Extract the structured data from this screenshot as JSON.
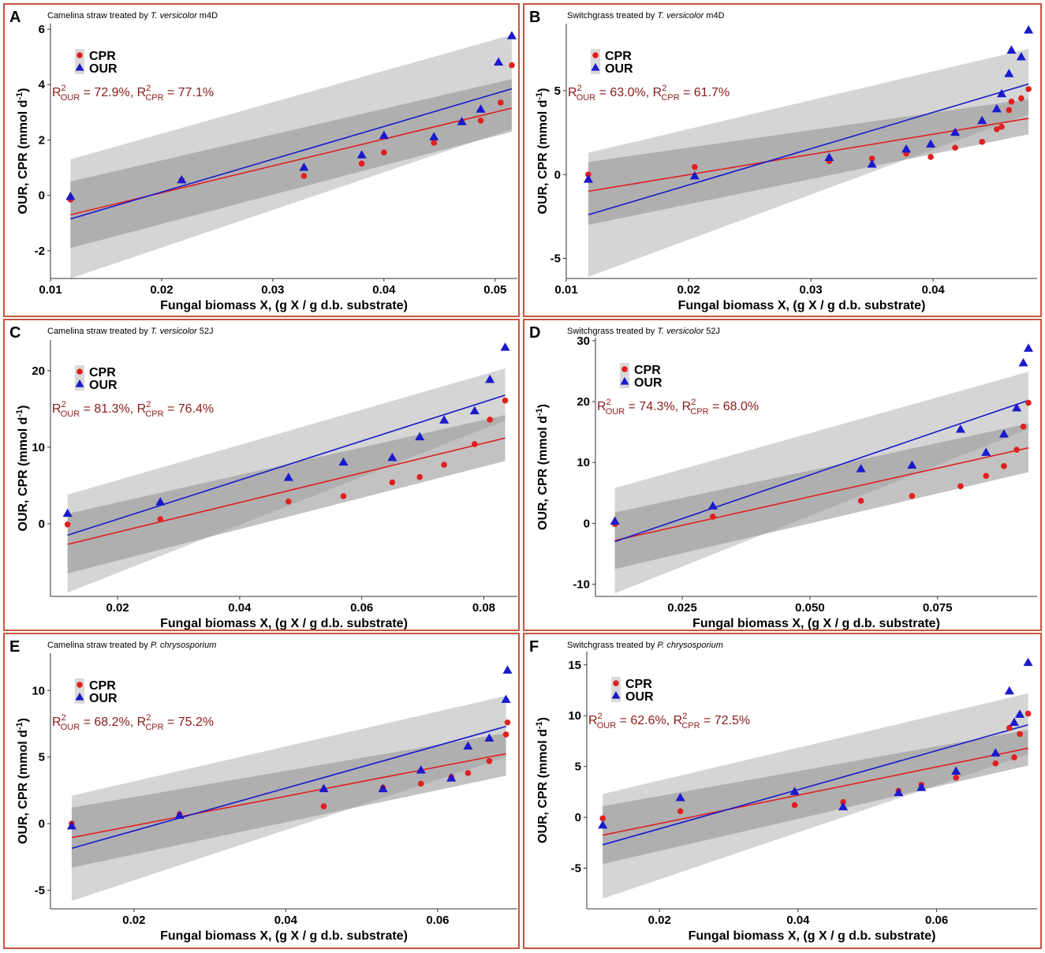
{
  "figure": {
    "colors": {
      "our": "#1a1acc",
      "cpr": "#e02020",
      "r2_text": "#8b1a1a",
      "band_light": "#d3d3d3",
      "band_dark": "#a9a9a9",
      "frame": "#c8553d"
    },
    "xlabel": "Fungal biomass X, (g X / g d.b. substrate)",
    "ylabel_main": "OUR, CPR (mmol d",
    "ylabel_sup": "-1",
    "ylabel_close": ")",
    "legend": [
      "CPR",
      "OUR"
    ]
  },
  "chart_data": [
    {
      "panel": "A",
      "type": "scatter",
      "title_prefix": "Camelina straw treated by ",
      "title_italic": "T. versicolor",
      "title_suffix": " m4D",
      "r2_our": "72.9%",
      "r2_cpr": "77.1%",
      "xlim": [
        0.01,
        0.052
      ],
      "ylim": [
        -3.0,
        6.2
      ],
      "xticks": [
        0.01,
        0.02,
        0.03,
        0.04,
        0.05
      ],
      "xticklabels": [
        "0.01",
        "0.02",
        "0.03",
        "0.04",
        "0.05"
      ],
      "yticks": [
        -2,
        0,
        2,
        4,
        6
      ],
      "yticklabels": [
        "-2",
        "0",
        "2",
        "4",
        "6"
      ],
      "x_range": [
        0.0118,
        0.0515
      ],
      "our": {
        "x": [
          0.0118,
          0.0218,
          0.0328,
          0.038,
          0.04,
          0.0445,
          0.047,
          0.0487,
          0.0503,
          0.0515
        ],
        "y": [
          -0.05,
          0.55,
          1.0,
          1.45,
          2.15,
          2.1,
          2.65,
          3.1,
          4.8,
          5.75
        ],
        "fit": [
          -0.85,
          3.85
        ],
        "band": [
          [
            -3.0,
            1.3
          ],
          [
            2.4,
            5.8
          ]
        ]
      },
      "cpr": {
        "x": [
          0.0118,
          0.0218,
          0.0328,
          0.038,
          0.04,
          0.0445,
          0.047,
          0.0487,
          0.0505,
          0.0515
        ],
        "y": [
          -0.15,
          0.55,
          0.7,
          1.15,
          1.55,
          1.9,
          2.65,
          2.7,
          3.35,
          4.7
        ],
        "fit": [
          -0.7,
          3.15
        ],
        "band": [
          [
            -1.9,
            0.5
          ],
          [
            2.3,
            4.2
          ]
        ]
      }
    },
    {
      "panel": "B",
      "type": "scatter",
      "title_prefix": "Switchgrass treated by ",
      "title_italic": "T. versicolor",
      "title_suffix": " m4D",
      "r2_our": "63.0%",
      "r2_cpr": "61.7%",
      "xlim": [
        0.01,
        0.0485
      ],
      "ylim": [
        -6.2,
        9.0
      ],
      "xticks": [
        0.01,
        0.02,
        0.03,
        0.04
      ],
      "xticklabels": [
        "0.01",
        "0.02",
        "0.03",
        "0.04"
      ],
      "yticks": [
        -5,
        0,
        5
      ],
      "yticklabels": [
        "-5",
        "0",
        "5"
      ],
      "x_range": [
        0.0118,
        0.0478
      ],
      "our": {
        "x": [
          0.0118,
          0.0205,
          0.0315,
          0.035,
          0.0378,
          0.0398,
          0.0418,
          0.044,
          0.0452,
          0.0456,
          0.0462,
          0.0464,
          0.0472,
          0.0478
        ],
        "y": [
          -0.3,
          -0.1,
          1.0,
          0.6,
          1.5,
          1.8,
          2.5,
          3.2,
          3.9,
          4.8,
          6.0,
          7.4,
          7.0,
          8.6
        ],
        "fit": [
          -2.4,
          5.4
        ],
        "band": [
          [
            -6.1,
            1.3
          ],
          [
            3.6,
            7.5
          ]
        ]
      },
      "cpr": {
        "x": [
          0.0118,
          0.0205,
          0.0315,
          0.035,
          0.0378,
          0.0398,
          0.0418,
          0.044,
          0.0452,
          0.0456,
          0.0462,
          0.0464,
          0.0472,
          0.0478
        ],
        "y": [
          0.0,
          0.45,
          0.8,
          0.95,
          1.25,
          1.05,
          1.6,
          1.95,
          2.7,
          2.85,
          3.85,
          4.35,
          4.55,
          5.1
        ],
        "fit": [
          -1.0,
          3.35
        ],
        "band": [
          [
            -3.0,
            0.75
          ],
          [
            2.4,
            4.5
          ]
        ]
      }
    },
    {
      "panel": "C",
      "type": "scatter",
      "title_prefix": "Camelina straw treated by ",
      "title_italic": "T. versicolor",
      "title_suffix": " 52J",
      "r2_our": "81.3%",
      "r2_cpr": "76.4%",
      "xlim": [
        0.009,
        0.0855
      ],
      "ylim": [
        -9.5,
        24.0
      ],
      "xticks": [
        0.02,
        0.04,
        0.06,
        0.08
      ],
      "xticklabels": [
        "0.02",
        "0.04",
        "0.06",
        "0.08"
      ],
      "yticks": [
        0,
        10,
        20
      ],
      "yticklabels": [
        "0",
        "10",
        "20"
      ],
      "x_range": [
        0.0118,
        0.0835
      ],
      "our": {
        "x": [
          0.0118,
          0.027,
          0.048,
          0.057,
          0.065,
          0.0695,
          0.0735,
          0.0785,
          0.081,
          0.0835
        ],
        "y": [
          1.3,
          2.8,
          6.0,
          8.0,
          8.6,
          11.3,
          13.5,
          14.7,
          18.8,
          23.0
        ],
        "fit": [
          -1.5,
          16.8
        ],
        "band": [
          [
            -9.0,
            3.8
          ],
          [
            13.5,
            20.3
          ]
        ]
      },
      "cpr": {
        "x": [
          0.0118,
          0.027,
          0.048,
          0.057,
          0.065,
          0.0695,
          0.0735,
          0.0785,
          0.081,
          0.0835
        ],
        "y": [
          -0.1,
          0.6,
          2.9,
          3.6,
          5.4,
          6.1,
          7.7,
          10.4,
          13.6,
          16.1
        ],
        "fit": [
          -2.7,
          11.2
        ],
        "band": [
          [
            -6.5,
            1.3
          ],
          [
            8.2,
            14.2
          ]
        ]
      }
    },
    {
      "panel": "D",
      "type": "scatter",
      "title_prefix": "Switchgrass treated by ",
      "title_italic": "T. versicolor",
      "title_suffix": " 52J",
      "r2_our": "74.3%",
      "r2_cpr": "68.0%",
      "xlim": [
        0.008,
        0.0945
      ],
      "ylim": [
        -12.0,
        30.5
      ],
      "xticks": [
        0.025,
        0.05,
        0.075
      ],
      "xticklabels": [
        "0.025",
        "0.050",
        "0.075"
      ],
      "yticks": [
        -10,
        0,
        10,
        20,
        30
      ],
      "yticklabels": [
        "-10",
        "0",
        "10",
        "20",
        "30"
      ],
      "x_range": [
        0.0118,
        0.0928
      ],
      "our": {
        "x": [
          0.0118,
          0.031,
          0.06,
          0.07,
          0.0795,
          0.0845,
          0.088,
          0.0905,
          0.0918,
          0.0928
        ],
        "y": [
          0.3,
          2.8,
          8.9,
          9.5,
          15.4,
          11.6,
          14.6,
          18.9,
          26.3,
          28.7
        ],
        "fit": [
          -3.0,
          20.2
        ],
        "band": [
          [
            -11.5,
            5.8
          ],
          [
            15.5,
            24.9
          ]
        ]
      },
      "cpr": {
        "x": [
          0.0118,
          0.031,
          0.06,
          0.07,
          0.0795,
          0.0845,
          0.088,
          0.0905,
          0.0918,
          0.0928
        ],
        "y": [
          -0.1,
          1.1,
          3.7,
          4.5,
          6.1,
          7.8,
          9.4,
          12.1,
          15.9,
          19.8
        ],
        "fit": [
          -2.8,
          12.4
        ],
        "band": [
          [
            -7.5,
            1.8
          ],
          [
            8.4,
            16.4
          ]
        ]
      }
    },
    {
      "panel": "E",
      "type": "scatter",
      "title_prefix": "Camelina straw treated by ",
      "title_italic": "P. chrysosporium",
      "title_suffix": "",
      "r2_our": "68.2%",
      "r2_cpr": "75.2%",
      "xlim": [
        0.009,
        0.0705
      ],
      "ylim": [
        -6.4,
        12.8
      ],
      "xticks": [
        0.02,
        0.04,
        0.06
      ],
      "xticklabels": [
        "0.02",
        "0.04",
        "0.06"
      ],
      "yticks": [
        -5,
        0,
        5,
        10
      ],
      "yticklabels": [
        "-5",
        "0",
        "5",
        "10"
      ],
      "x_range": [
        0.0118,
        0.069
      ],
      "our": {
        "x": [
          0.0118,
          0.026,
          0.045,
          0.0528,
          0.0578,
          0.0618,
          0.064,
          0.0668,
          0.069,
          0.0692
        ],
        "y": [
          -0.2,
          0.6,
          2.6,
          2.6,
          4.0,
          3.4,
          5.8,
          6.4,
          9.3,
          11.5
        ],
        "fit": [
          -1.85,
          7.3
        ],
        "band": [
          [
            -5.8,
            2.1
          ],
          [
            5.0,
            9.6
          ]
        ]
      },
      "cpr": {
        "x": [
          0.0118,
          0.026,
          0.045,
          0.0528,
          0.0578,
          0.0618,
          0.064,
          0.0668,
          0.069,
          0.0692
        ],
        "y": [
          0.0,
          0.7,
          1.3,
          2.7,
          3.0,
          3.5,
          3.8,
          4.7,
          6.7,
          7.6
        ],
        "fit": [
          -1.05,
          5.25
        ],
        "band": [
          [
            -3.3,
            1.2
          ],
          [
            3.6,
            6.8
          ]
        ]
      }
    },
    {
      "panel": "F",
      "type": "scatter",
      "title_prefix": "Switchgrass treated by ",
      "title_italic": "P. chrysosporium",
      "title_suffix": "",
      "r2_our": "62.6%",
      "r2_cpr": "72.5%",
      "xlim": [
        0.0095,
        0.0745
      ],
      "ylim": [
        -9.0,
        16.3
      ],
      "xticks": [
        0.02,
        0.04,
        0.06
      ],
      "xticklabels": [
        "0.02",
        "0.04",
        "0.06"
      ],
      "yticks": [
        -5,
        0,
        5,
        10,
        15
      ],
      "yticklabels": [
        "-5",
        "0",
        "5",
        "10",
        "15"
      ],
      "x_range": [
        0.0118,
        0.0732
      ],
      "our": {
        "x": [
          0.0118,
          0.023,
          0.0395,
          0.0465,
          0.0545,
          0.0578,
          0.0628,
          0.0685,
          0.0705,
          0.0712,
          0.072,
          0.0732
        ],
        "y": [
          -0.8,
          1.9,
          2.5,
          1.0,
          2.4,
          2.9,
          4.5,
          6.3,
          12.4,
          9.3,
          10.1,
          15.2
        ],
        "fit": [
          -2.7,
          9.1
        ],
        "band": [
          [
            -8.0,
            2.3
          ],
          [
            6.2,
            12.2
          ]
        ]
      },
      "cpr": {
        "x": [
          0.0118,
          0.023,
          0.0395,
          0.0465,
          0.0545,
          0.0578,
          0.0628,
          0.0685,
          0.0705,
          0.0712,
          0.072,
          0.0732
        ],
        "y": [
          -0.1,
          0.6,
          1.2,
          1.5,
          2.6,
          3.2,
          3.9,
          5.3,
          8.8,
          5.9,
          8.2,
          10.2
        ],
        "fit": [
          -1.75,
          6.8
        ],
        "band": [
          [
            -4.6,
            1.1
          ],
          [
            5.1,
            8.6
          ]
        ]
      }
    }
  ]
}
